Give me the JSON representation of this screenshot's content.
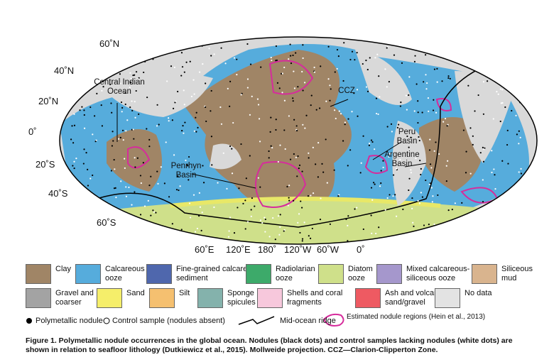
{
  "map": {
    "lat_labels": [
      "60˚N",
      "40˚N",
      "20˚N",
      "0˚",
      "20˚S",
      "40˚S",
      "60˚S"
    ],
    "lon_labels": [
      "60˚E",
      "120˚E",
      "180˚",
      "120˚W",
      "60˚W",
      "0˚"
    ],
    "annotations": [
      "Central Indian Ocean",
      "CCZ",
      "Peru Basin",
      "Argentine Basin",
      "Penrhyn Basin"
    ]
  },
  "legend": {
    "lithology": [
      {
        "label": "Clay",
        "color": "#a08566"
      },
      {
        "label": "Calcareous ooze",
        "color": "#56acdc"
      },
      {
        "label": "Fine-grained calcareous sediment",
        "color": "#4f67ad"
      },
      {
        "label": "Radiolarian ooze",
        "color": "#3daa6a"
      },
      {
        "label": "Diatom ooze",
        "color": "#cfe08a"
      },
      {
        "label": "Mixed calcareous-siliceous ooze",
        "color": "#a597cc"
      },
      {
        "label": "Siliceous mud",
        "color": "#d9b48e"
      },
      {
        "label": "Gravel and coarser",
        "color": "#a3a3a3"
      },
      {
        "label": "Sand",
        "color": "#f5ee6a"
      },
      {
        "label": "Silt",
        "color": "#f5c070"
      },
      {
        "label": "Sponge spicules",
        "color": "#84b2ac"
      },
      {
        "label": "Shells and coral fragments",
        "color": "#f7c8dc"
      },
      {
        "label": "Ash and volcanic sand/gravel",
        "color": "#ee5a62"
      },
      {
        "label": "No data",
        "color": "#e3e3e3"
      }
    ],
    "symbols": [
      "Polymetallic nodule",
      "Control sample (nodules absent)",
      "Mid-ocean ridge",
      "Estimated nodule regions (Hein et al., 2013)"
    ]
  },
  "caption": "Figure 1. Polymetallic nodule occurrences in the global ocean. Nodules (black dots) and control samples lacking nodules (white dots) are shown in relation to seafloor lithology (Dutkiewicz et al., 2015). Mollweide projection. CCZ—Clarion-Clipperton Zone."
}
